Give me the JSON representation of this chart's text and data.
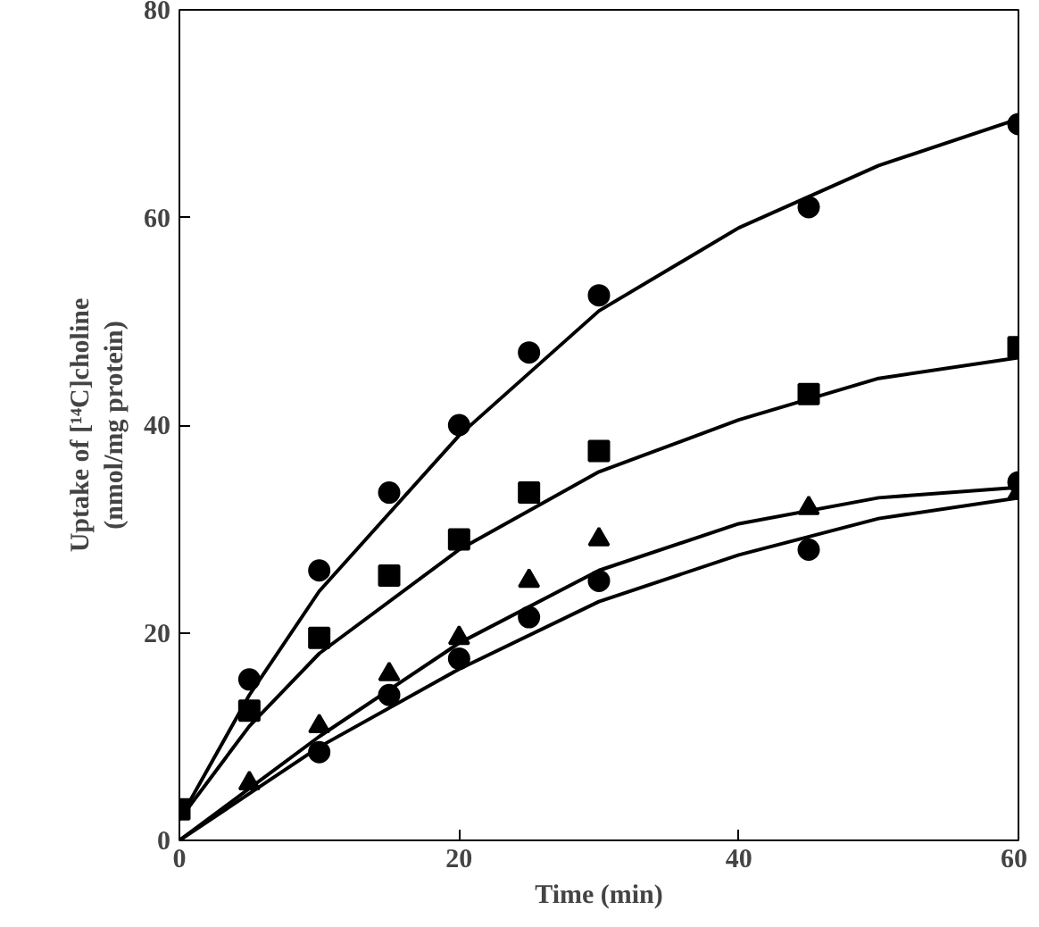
{
  "chart_data": {
    "type": "scatter",
    "xlabel": "Time (min)",
    "ylabel": "Uptake of [¹⁴C]choline\n(nmol/mg protein)",
    "xlim": [
      0,
      60
    ],
    "ylim": [
      0,
      80
    ],
    "xticks": [
      0,
      20,
      40,
      60
    ],
    "yticks": [
      0,
      20,
      40,
      60,
      80
    ],
    "grid": false,
    "series": [
      {
        "color": "#000000",
        "marker": "circle",
        "x": [
          5,
          10,
          15,
          20,
          25,
          30,
          45,
          60
        ],
        "values": [
          15.5,
          26,
          33.5,
          40,
          47,
          52.5,
          61,
          69
        ]
      },
      {
        "color": "#000000",
        "marker": "square",
        "x": [
          0,
          5,
          10,
          15,
          20,
          25,
          30,
          45,
          60
        ],
        "values": [
          3,
          12.5,
          19.5,
          25.5,
          29,
          33.5,
          37.5,
          43,
          47.5
        ]
      },
      {
        "color": "#000000",
        "marker": "triangle",
        "x": [
          5,
          10,
          15,
          20,
          25,
          30,
          45,
          60
        ],
        "values": [
          5.5,
          11,
          16,
          19.5,
          25,
          29,
          32,
          33.5
        ]
      },
      {
        "color": "#000000",
        "marker": "circle",
        "x": [
          10,
          15,
          20,
          25,
          30,
          45,
          60
        ],
        "values": [
          8.5,
          14,
          17.5,
          21.5,
          25,
          28,
          34.5
        ]
      },
      {
        "type": "line",
        "color": "#000000",
        "x": [
          0,
          5,
          10,
          20,
          30,
          40,
          50,
          60
        ],
        "values": [
          2,
          14,
          24,
          39,
          51,
          59,
          65,
          69.5
        ]
      },
      {
        "type": "line",
        "color": "#000000",
        "x": [
          0,
          5,
          10,
          20,
          30,
          40,
          50,
          60
        ],
        "values": [
          2,
          11,
          18,
          28,
          35.5,
          40.5,
          44.5,
          46.5
        ]
      },
      {
        "type": "line",
        "color": "#000000",
        "x": [
          0,
          5,
          10,
          20,
          30,
          40,
          50,
          60
        ],
        "values": [
          0,
          5,
          10,
          19,
          26,
          30.5,
          33,
          34
        ]
      },
      {
        "type": "line",
        "color": "#000000",
        "x": [
          0,
          5,
          10,
          20,
          30,
          40,
          50,
          60
        ],
        "values": [
          0,
          4.5,
          9,
          16.5,
          23,
          27.5,
          31,
          33
        ]
      }
    ]
  }
}
